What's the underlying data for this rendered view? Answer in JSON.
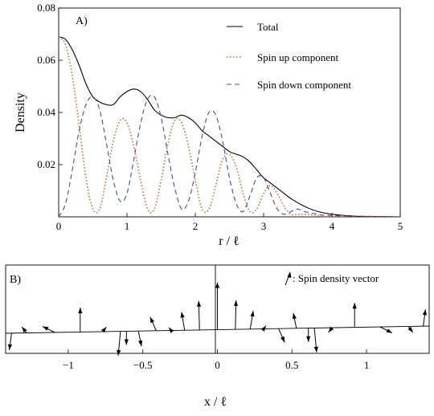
{
  "chart_data": [
    {
      "type": "line",
      "panel_label": "A)",
      "title": "",
      "xlabel": "r / ℓ",
      "ylabel": "Density",
      "xlim": [
        0,
        5
      ],
      "ylim": [
        0,
        0.08
      ],
      "x_ticks": [
        0,
        1,
        2,
        3,
        4,
        5
      ],
      "x_tick_labels": [
        "0",
        "1",
        "2",
        "3",
        "4",
        "5"
      ],
      "y_ticks": [
        0.02,
        0.04,
        0.06,
        0.08
      ],
      "y_tick_labels": [
        "0.02",
        "0.04",
        "0.06",
        "0.08"
      ],
      "grid": false,
      "legend_position": "top-right",
      "series": [
        {
          "name": "Total",
          "style": "solid",
          "color": "#000000",
          "x": [
            0,
            0.1,
            0.2,
            0.3,
            0.4,
            0.5,
            0.6,
            0.7,
            0.8,
            0.9,
            1.0,
            1.1,
            1.2,
            1.3,
            1.4,
            1.5,
            1.6,
            1.7,
            1.8,
            1.9,
            2.0,
            2.1,
            2.2,
            2.3,
            2.4,
            2.5,
            2.6,
            2.7,
            2.8,
            2.9,
            3.0,
            3.2,
            3.4,
            3.6,
            3.8,
            4.0,
            4.2,
            4.4,
            4.6,
            5.0
          ],
          "y": [
            0.069,
            0.068,
            0.064,
            0.058,
            0.051,
            0.046,
            0.044,
            0.043,
            0.043,
            0.046,
            0.048,
            0.049,
            0.048,
            0.045,
            0.041,
            0.039,
            0.038,
            0.038,
            0.039,
            0.038,
            0.036,
            0.033,
            0.031,
            0.029,
            0.027,
            0.025,
            0.024,
            0.023,
            0.021,
            0.018,
            0.015,
            0.011,
            0.007,
            0.004,
            0.002,
            0.001,
            0.0005,
            0.0002,
            0.0001,
            0.0
          ]
        },
        {
          "name": "Spin up component",
          "style": "dotted",
          "color": "#d2691e",
          "x": [
            0,
            0.1,
            0.2,
            0.3,
            0.4,
            0.5,
            0.6,
            0.7,
            0.8,
            0.9,
            1.0,
            1.1,
            1.2,
            1.3,
            1.4,
            1.5,
            1.6,
            1.7,
            1.8,
            1.9,
            2.0,
            2.1,
            2.2,
            2.3,
            2.4,
            2.5,
            2.6,
            2.7,
            2.8,
            2.9,
            3.0,
            3.1,
            3.2,
            3.3,
            3.4,
            3.5,
            3.6,
            3.8,
            4.0,
            5.0
          ],
          "y": [
            0.069,
            0.066,
            0.054,
            0.035,
            0.015,
            0.003,
            0.003,
            0.015,
            0.029,
            0.037,
            0.036,
            0.027,
            0.014,
            0.003,
            0.003,
            0.014,
            0.028,
            0.037,
            0.036,
            0.027,
            0.014,
            0.003,
            0.003,
            0.012,
            0.022,
            0.024,
            0.019,
            0.009,
            0.002,
            0.003,
            0.009,
            0.012,
            0.009,
            0.004,
            0.001,
            0.001,
            0.001,
            0.0005,
            0.0,
            0.0
          ]
        },
        {
          "name": "Spin down component",
          "style": "dashed",
          "color": "#3c4f9c",
          "x": [
            0,
            0.1,
            0.2,
            0.3,
            0.4,
            0.5,
            0.6,
            0.7,
            0.8,
            0.9,
            1.0,
            1.1,
            1.2,
            1.3,
            1.4,
            1.5,
            1.6,
            1.7,
            1.8,
            1.9,
            2.0,
            2.1,
            2.2,
            2.3,
            2.4,
            2.5,
            2.6,
            2.7,
            2.8,
            2.9,
            3.0,
            3.1,
            3.2,
            3.3,
            3.4,
            3.5,
            3.6,
            3.8,
            4.0,
            5.0
          ],
          "y": [
            0.0,
            0.005,
            0.018,
            0.033,
            0.043,
            0.046,
            0.041,
            0.028,
            0.014,
            0.006,
            0.009,
            0.022,
            0.036,
            0.045,
            0.046,
            0.038,
            0.024,
            0.011,
            0.003,
            0.006,
            0.017,
            0.031,
            0.04,
            0.039,
            0.029,
            0.015,
            0.005,
            0.002,
            0.008,
            0.015,
            0.015,
            0.009,
            0.003,
            0.001,
            0.002,
            0.003,
            0.002,
            0.001,
            0.0005,
            0.0
          ]
        }
      ]
    },
    {
      "type": "scatter",
      "panel_label": "B)",
      "title": "",
      "xlabel": "x / ℓ",
      "ylabel": "",
      "xlim": [
        -1.42,
        1.42
      ],
      "x_ticks": [
        -1,
        -0.5,
        0,
        0.5,
        1
      ],
      "x_tick_labels": [
        "−1",
        "−0.5",
        "0",
        "0.5",
        "1"
      ],
      "grid": false,
      "legend_position": "top-right",
      "legend_entry": ": Spin density vector",
      "marker": "arrow",
      "series": [
        {
          "name": "Spin density vector",
          "color": "#000000",
          "x": [
            -1.38,
            -1.28,
            -1.09,
            -0.92,
            -0.77,
            -0.65,
            -0.61,
            -0.53,
            -0.41,
            -0.31,
            -0.22,
            -0.12,
            0.0,
            0.12,
            0.22,
            0.31,
            0.41,
            0.53,
            0.61,
            0.65,
            0.77,
            0.92,
            1.09,
            1.28,
            1.38
          ],
          "dx": [
            -0.03,
            -0.06,
            -0.16,
            0.0,
            0.05,
            -0.03,
            0.0,
            0.04,
            -0.08,
            -0.03,
            -0.04,
            -0.01,
            0.0,
            0.01,
            0.04,
            0.03,
            0.08,
            -0.04,
            0.0,
            0.03,
            -0.05,
            0.0,
            0.16,
            0.06,
            0.03
          ],
          "dy": [
            -0.22,
            0.08,
            0.08,
            0.32,
            0.06,
            -0.32,
            -0.18,
            -0.2,
            0.18,
            0.04,
            0.24,
            0.38,
            0.62,
            0.38,
            0.24,
            0.04,
            -0.18,
            0.2,
            -0.18,
            -0.32,
            -0.06,
            0.32,
            -0.08,
            -0.08,
            0.22
          ]
        }
      ]
    }
  ]
}
